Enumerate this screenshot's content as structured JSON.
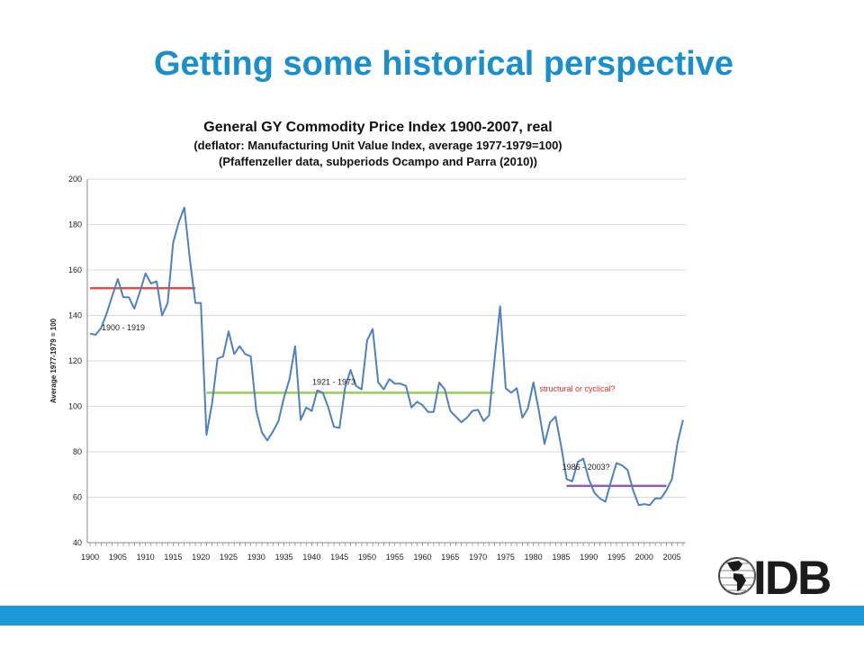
{
  "slide": {
    "title": "Getting some historical perspective",
    "accent_color": "#1a8fca",
    "bar_color": "#1a99d6"
  },
  "logo": {
    "text": "IDB",
    "icon": "globe-americas-icon"
  },
  "chart_data": {
    "type": "line",
    "title": "General GY Commodity Price Index 1900-2007, real",
    "subtitle": [
      "(deflator: Manufacturing Unit Value Index, average 1977-1979=100)",
      "(Pfaffenzeller data,  subperiods  Ocampo and Parra (2010))"
    ],
    "xlabel": "",
    "ylabel": "Average 1977-1979 = 100",
    "xlim": [
      1900,
      2007
    ],
    "ylim": [
      40,
      200
    ],
    "yticks": [
      40,
      60,
      80,
      100,
      120,
      140,
      160,
      180,
      200
    ],
    "xticks": [
      1900,
      1905,
      1910,
      1915,
      1920,
      1925,
      1930,
      1935,
      1940,
      1945,
      1950,
      1955,
      1960,
      1965,
      1970,
      1975,
      1980,
      1985,
      1990,
      1995,
      2000,
      2005
    ],
    "grid": true,
    "series": [
      {
        "color": "#4f81bd",
        "x": [
          1900,
          1901,
          1902,
          1903,
          1904,
          1905,
          1906,
          1907,
          1908,
          1909,
          1910,
          1911,
          1912,
          1913,
          1914,
          1915,
          1916,
          1917,
          1918,
          1919,
          1920,
          1921,
          1922,
          1923,
          1924,
          1925,
          1926,
          1927,
          1928,
          1929,
          1930,
          1931,
          1932,
          1933,
          1934,
          1935,
          1936,
          1937,
          1938,
          1939,
          1940,
          1941,
          1942,
          1943,
          1944,
          1945,
          1946,
          1947,
          1948,
          1949,
          1950,
          1951,
          1952,
          1953,
          1954,
          1955,
          1956,
          1957,
          1958,
          1959,
          1960,
          1961,
          1962,
          1963,
          1964,
          1965,
          1966,
          1967,
          1968,
          1969,
          1970,
          1971,
          1972,
          1973,
          1974,
          1975,
          1976,
          1977,
          1978,
          1979,
          1980,
          1981,
          1982,
          1983,
          1984,
          1985,
          1986,
          1987,
          1988,
          1989,
          1990,
          1991,
          1992,
          1993,
          1994,
          1995,
          1996,
          1997,
          1998,
          1999,
          2000,
          2001,
          2002,
          2003,
          2004,
          2005,
          2006,
          2007
        ],
        "y": [
          132,
          131.5,
          134.5,
          141,
          148.5,
          156,
          148,
          148,
          143,
          150.5,
          158.5,
          154,
          155,
          140,
          145.5,
          172,
          181,
          187.5,
          165,
          145.5,
          145.5,
          87.5,
          101,
          121,
          122,
          133,
          123,
          126.5,
          123,
          122,
          98,
          88.5,
          85,
          89,
          93.5,
          104,
          112,
          126.5,
          94,
          99.5,
          98,
          107,
          106,
          99.5,
          91,
          90.5,
          108,
          116,
          109,
          107.5,
          129,
          134,
          110.5,
          107.5,
          112,
          110,
          110,
          109,
          99.5,
          102,
          100.5,
          97.5,
          97.5,
          110.5,
          107.5,
          98,
          95.5,
          93,
          95,
          98,
          98.5,
          93.5,
          96,
          121,
          144,
          108,
          106,
          108,
          95,
          99,
          110.5,
          98,
          83.5,
          93,
          95.5,
          82.5,
          68,
          67,
          75.5,
          77,
          68,
          62,
          59.5,
          58,
          67,
          75,
          74,
          72,
          63,
          56.5,
          57,
          56.5,
          59.5,
          59.5,
          63,
          68,
          84,
          94
        ]
      }
    ],
    "reference_lines": [
      {
        "label": "1900 - 1919",
        "x": [
          1900,
          1919
        ],
        "y": 152,
        "color": "#d9534f"
      },
      {
        "label": "1921 - 1973",
        "x": [
          1921,
          1973
        ],
        "y": 106,
        "color": "#9bcb5f"
      },
      {
        "label": "1986 - 2003?",
        "x": [
          1986,
          2004
        ],
        "y": 65,
        "color": "#8e5bb5"
      }
    ],
    "annotations": [
      {
        "text": "structural or cyclical?",
        "x": 1985,
        "y": 107,
        "color": "#d9302c"
      }
    ]
  }
}
